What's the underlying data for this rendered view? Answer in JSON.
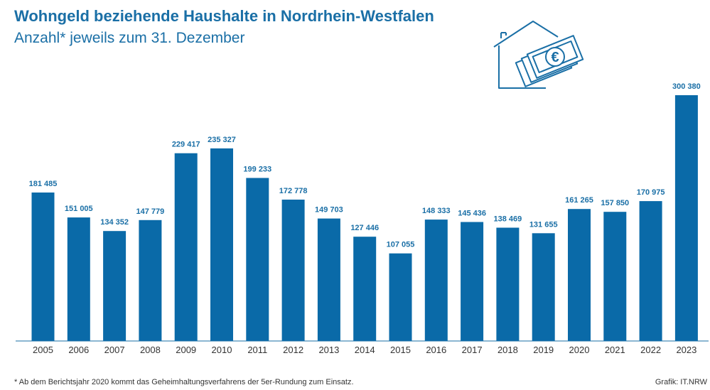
{
  "colors": {
    "bar": "#0a6aa8",
    "title": "#1a6fa6",
    "label": "#1a6fa6",
    "axis": "#1a6fa6"
  },
  "illustration": {
    "icon": "house-with-euro-banknotes-icon",
    "glyph": "€"
  },
  "chart_data": {
    "type": "bar",
    "title": "Wohngeld beziehende Haushalte in Nordrhein-Westfalen",
    "subtitle": "Anzahl* jeweils zum 31. Dezember",
    "categories": [
      "2005",
      "2006",
      "2007",
      "2008",
      "2009",
      "2010",
      "2011",
      "2012",
      "2013",
      "2014",
      "2015",
      "2016",
      "2017",
      "2018",
      "2019",
      "2020",
      "2021",
      "2022",
      "2023"
    ],
    "values": [
      181485,
      151005,
      134352,
      147779,
      229417,
      235327,
      199233,
      172778,
      149703,
      127446,
      107055,
      148333,
      145436,
      138469,
      131655,
      161265,
      157850,
      170975,
      300380
    ],
    "value_labels": [
      "181 485",
      "151 005",
      "134 352",
      "147 779",
      "229 417",
      "235 327",
      "199 233",
      "172 778",
      "149 703",
      "127 446",
      "107 055",
      "148 333",
      "145 436",
      "138 469",
      "131 655",
      "161 265",
      "157 850",
      "170 975",
      "300 380"
    ],
    "ylim": [
      0,
      300380
    ],
    "grid": false,
    "legend": "none",
    "footnote": "* Ab dem Berichtsjahr 2020 kommt das Geheimhaltungsverfahrens der 5er-Rundung zum Einsatz.",
    "source": "Grafik: IT.NRW"
  }
}
